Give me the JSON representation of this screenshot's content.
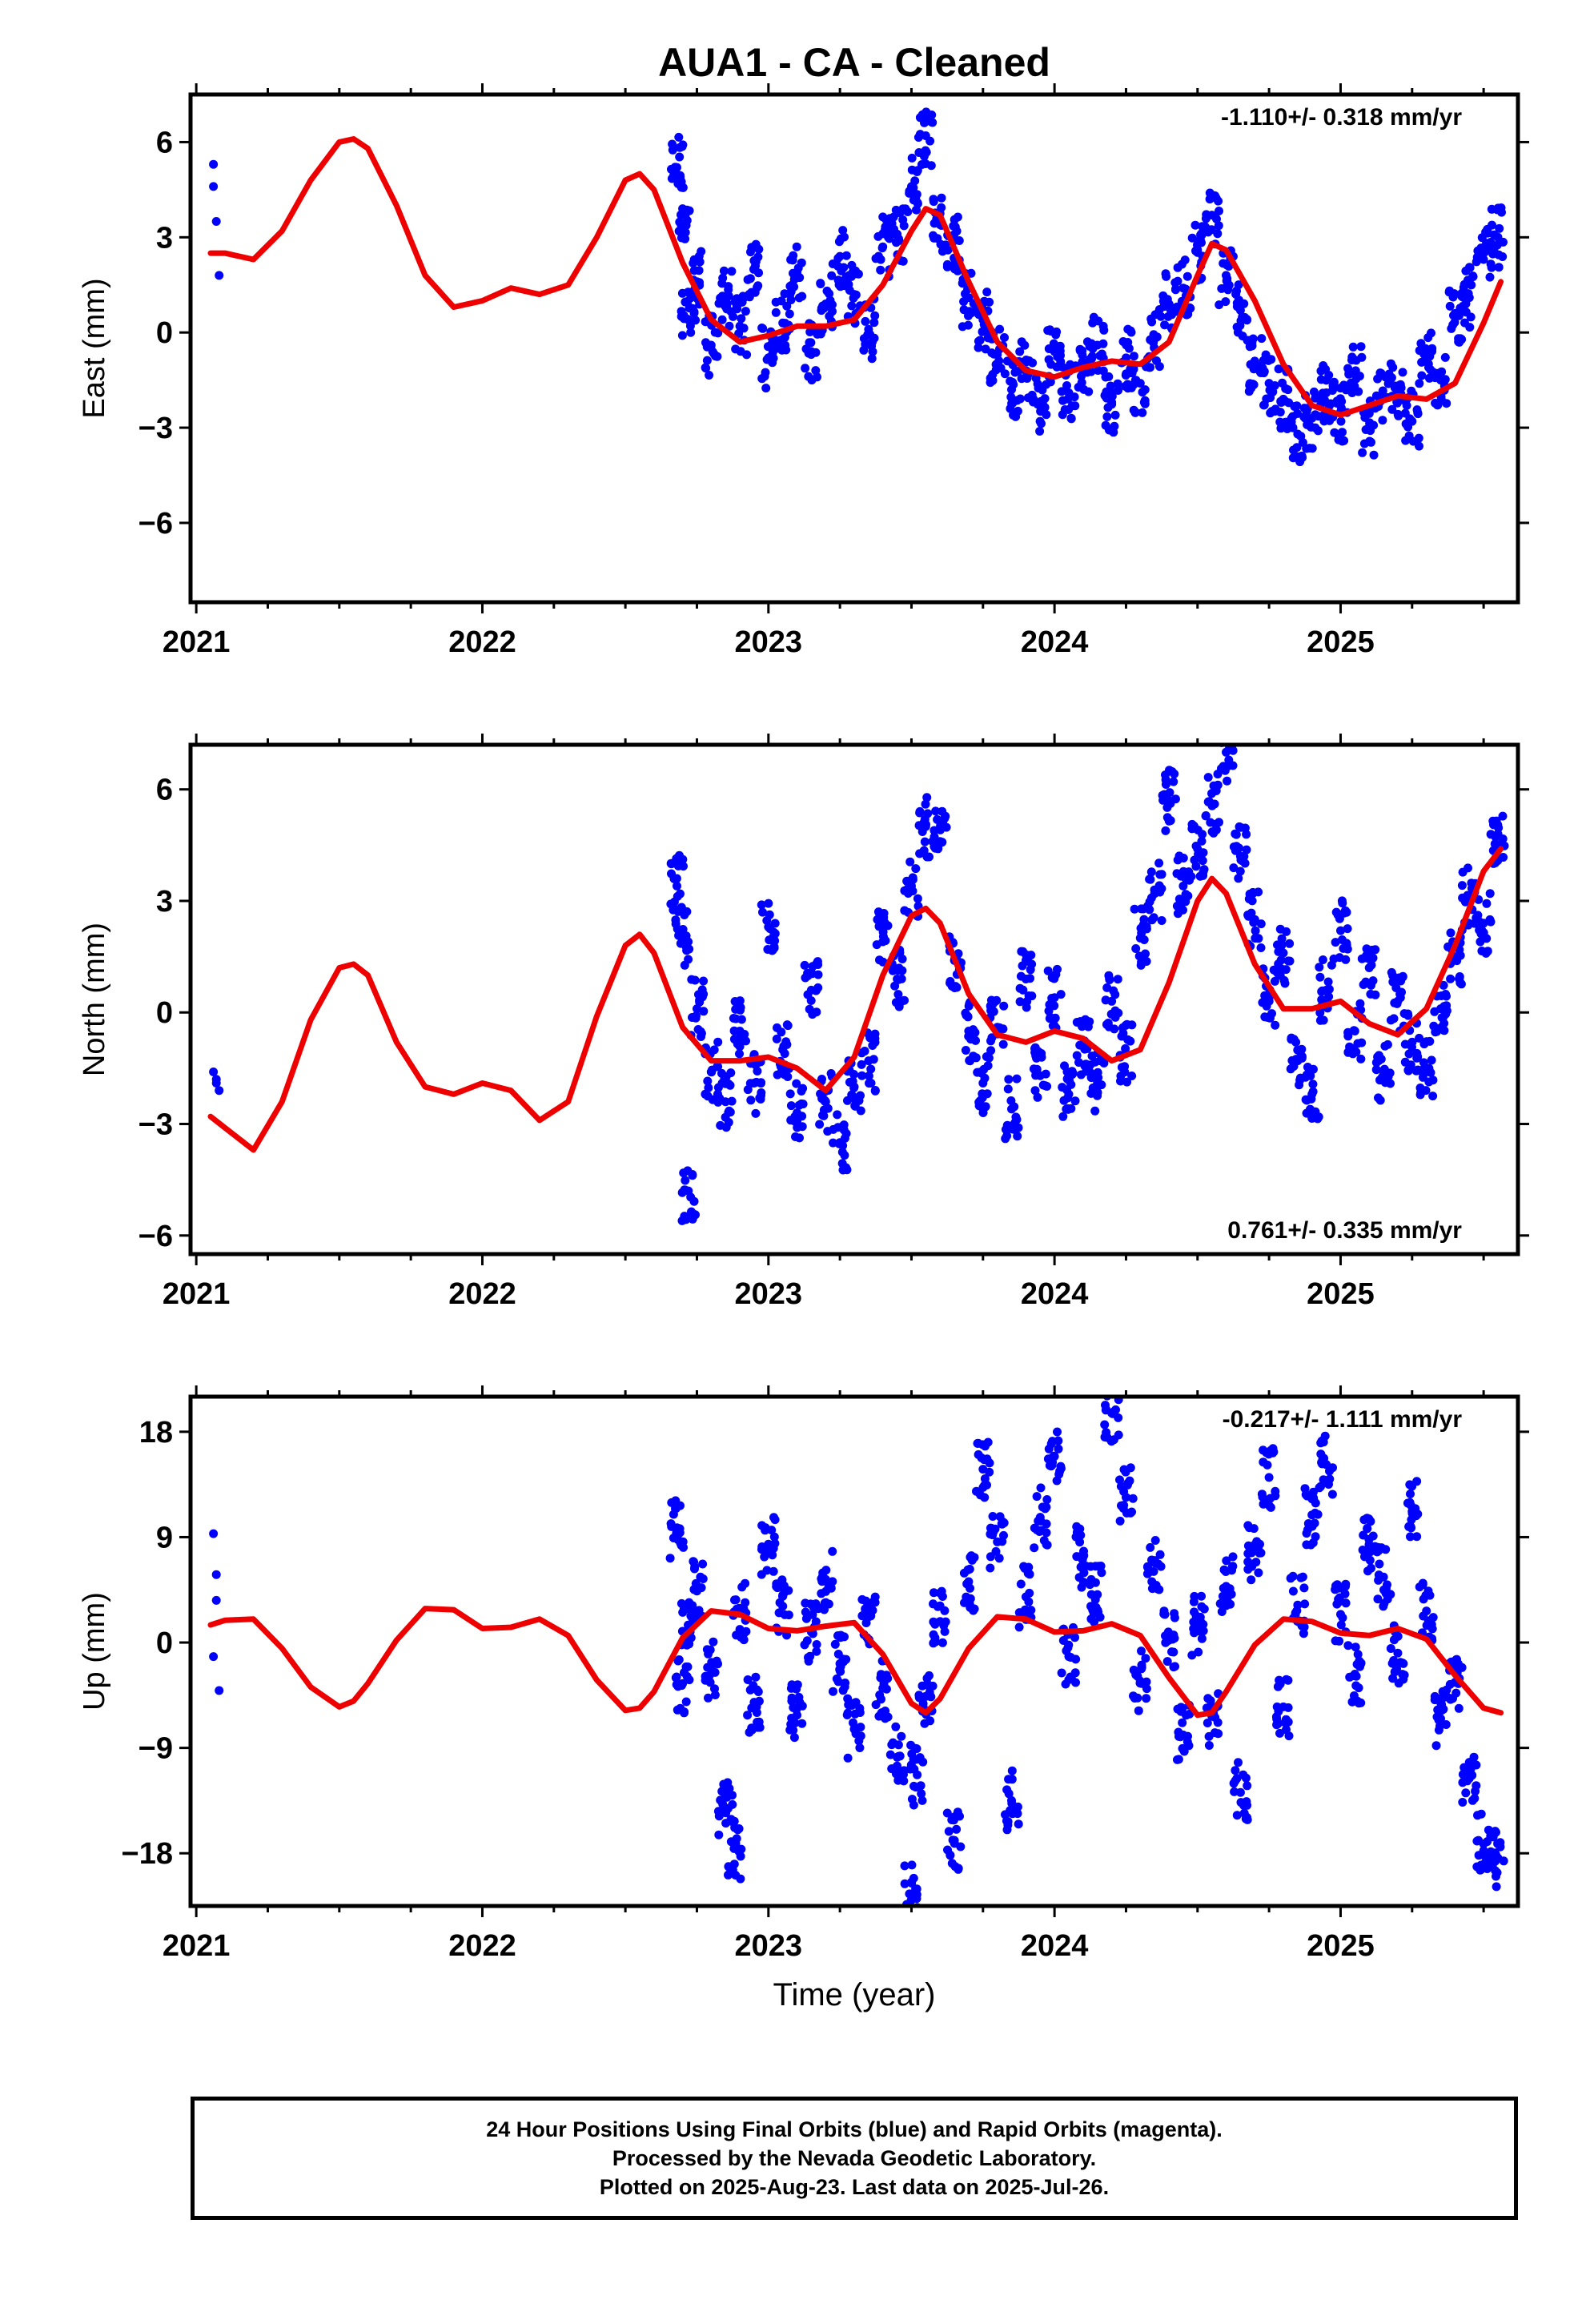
{
  "title": "AUA1  - CA - Cleaned",
  "footer": {
    "line1": "24 Hour Positions Using Final Orbits (blue) and Rapid Orbits (magenta).",
    "line2": "Processed by the Nevada Geodetic Laboratory.",
    "line3": "Plotted on 2025-Aug-23. Last data on 2025-Jul-26."
  },
  "colors": {
    "points": "#0000ff",
    "fit": "#ee0000",
    "frame": "#000000"
  },
  "chart_data": [
    {
      "type": "scatter",
      "ylabel": "East (mm)",
      "xlabel": "",
      "rate_label": "-1.110+/- 0.318 mm/yr",
      "rate_position": "top-right",
      "xlim": [
        2020.98,
        2025.62
      ],
      "ylim": [
        -8.5,
        7.5
      ],
      "xticks": [
        "2021",
        "2022",
        "2023",
        "2024",
        "2025"
      ],
      "yticks": [
        "6",
        "3",
        "0",
        "-3",
        "-6"
      ],
      "ytick_values": [
        6,
        3,
        0,
        -3,
        -6
      ],
      "series": [
        {
          "kind": "points",
          "x": [
            2021.06,
            2021.06,
            2021.07,
            2021.08
          ],
          "y": [
            5.3,
            4.6,
            3.5,
            1.8
          ]
        },
        {
          "kind": "points",
          "x": [
            2022.68,
            2022.7,
            2022.72,
            2022.75,
            2022.8,
            2022.85,
            2022.9,
            2022.95,
            2023.0,
            2023.05,
            2023.1,
            2023.15,
            2023.2,
            2023.25,
            2023.3,
            2023.35,
            2023.4,
            2023.45,
            2023.5,
            2023.55,
            2023.6,
            2023.65,
            2023.7,
            2023.75,
            2023.8,
            2023.85,
            2023.9,
            2023.95,
            2024.0,
            2024.05,
            2024.1,
            2024.15,
            2024.2,
            2024.25,
            2024.3,
            2024.35,
            2024.4,
            2024.45,
            2024.5,
            2024.55,
            2024.6,
            2024.65,
            2024.7,
            2024.75,
            2024.8,
            2024.85,
            2024.9,
            2024.95,
            2025.0,
            2025.05,
            2025.1,
            2025.15,
            2025.2,
            2025.25,
            2025.3,
            2025.35,
            2025.4,
            2025.45,
            2025.5,
            2025.55
          ],
          "y": [
            5.2,
            3.9,
            0.4,
            1.6,
            -0.4,
            1.1,
            0.2,
            2.0,
            -0.8,
            0.3,
            1.9,
            -0.6,
            0.9,
            2.4,
            1.2,
            0.1,
            2.7,
            3.1,
            4.6,
            6.2,
            3.4,
            2.9,
            1.1,
            0.4,
            -0.7,
            -1.8,
            -1.2,
            -2.3,
            -0.6,
            -1.9,
            -1.0,
            -0.4,
            -2.2,
            -0.8,
            -1.6,
            -0.2,
            0.9,
            1.4,
            2.6,
            3.7,
            1.8,
            0.7,
            -0.9,
            -1.6,
            -2.1,
            -3.2,
            -2.7,
            -1.9,
            -2.5,
            -1.3,
            -3.0,
            -2.0,
            -1.7,
            -2.8,
            -0.9,
            -1.5,
            0.6,
            1.1,
            2.3,
            3.0
          ]
        }
      ],
      "fit": {
        "x": [
          2021.05,
          2021.1,
          2021.2,
          2021.3,
          2021.4,
          2021.5,
          2021.55,
          2021.6,
          2021.7,
          2021.8,
          2021.9,
          2022.0,
          2022.1,
          2022.2,
          2022.3,
          2022.4,
          2022.5,
          2022.55,
          2022.6,
          2022.7,
          2022.8,
          2022.9,
          2023.0,
          2023.1,
          2023.2,
          2023.3,
          2023.4,
          2023.5,
          2023.55,
          2023.6,
          2023.7,
          2023.8,
          2023.9,
          2024.0,
          2024.1,
          2024.2,
          2024.3,
          2024.4,
          2024.5,
          2024.55,
          2024.6,
          2024.7,
          2024.8,
          2024.9,
          2025.0,
          2025.1,
          2025.2,
          2025.3,
          2025.4,
          2025.5,
          2025.56
        ],
        "y": [
          2.5,
          2.5,
          2.3,
          3.2,
          4.8,
          6.0,
          6.1,
          5.8,
          4.0,
          1.8,
          0.8,
          1.0,
          1.4,
          1.2,
          1.5,
          3.0,
          4.8,
          5.0,
          4.5,
          2.2,
          0.4,
          -0.3,
          -0.1,
          0.2,
          0.2,
          0.4,
          1.5,
          3.2,
          3.9,
          3.7,
          1.6,
          -0.3,
          -1.2,
          -1.4,
          -1.1,
          -0.9,
          -1.0,
          -0.3,
          1.8,
          2.8,
          2.6,
          1.0,
          -1.0,
          -2.3,
          -2.6,
          -2.3,
          -2.0,
          -2.1,
          -1.6,
          0.3,
          1.6
        ]
      }
    },
    {
      "type": "scatter",
      "ylabel": "North (mm)",
      "xlabel": "",
      "rate_label": "0.761+/- 0.335 mm/yr",
      "rate_position": "bottom-right",
      "xlim": [
        2020.98,
        2025.62
      ],
      "ylim": [
        -6.5,
        7.2
      ],
      "xticks": [
        "2021",
        "2022",
        "2023",
        "2024",
        "2025"
      ],
      "yticks": [
        "6",
        "3",
        "0",
        "-3",
        "-6"
      ],
      "ytick_values": [
        6,
        3,
        0,
        -3,
        -6
      ],
      "series": [
        {
          "kind": "points",
          "x": [
            2021.06,
            2021.07,
            2021.08,
            2021.07
          ],
          "y": [
            -1.6,
            -1.9,
            -2.1,
            -1.8
          ]
        },
        {
          "kind": "points",
          "x": [
            2022.68,
            2022.7,
            2022.72,
            2022.75,
            2022.8,
            2022.85,
            2022.9,
            2022.95,
            2023.0,
            2023.05,
            2023.1,
            2023.15,
            2023.2,
            2023.25,
            2023.3,
            2023.35,
            2023.4,
            2023.45,
            2023.5,
            2023.55,
            2023.6,
            2023.65,
            2023.7,
            2023.75,
            2023.8,
            2023.85,
            2023.9,
            2023.95,
            2024.0,
            2024.05,
            2024.1,
            2024.15,
            2024.2,
            2024.25,
            2024.3,
            2024.35,
            2024.4,
            2024.45,
            2024.5,
            2024.55,
            2024.6,
            2024.65,
            2024.7,
            2024.75,
            2024.8,
            2024.85,
            2024.9,
            2024.95,
            2025.0,
            2025.05,
            2025.1,
            2025.15,
            2025.2,
            2025.25,
            2025.3,
            2025.35,
            2025.4,
            2025.45,
            2025.5,
            2025.55
          ],
          "y": [
            3.4,
            2.0,
            -4.8,
            0.1,
            -1.6,
            -2.4,
            -0.5,
            -1.9,
            2.3,
            -1.0,
            -2.7,
            0.6,
            -2.4,
            -3.5,
            -2.0,
            -1.3,
            1.9,
            0.9,
            3.4,
            5.0,
            4.6,
            1.4,
            -0.5,
            -1.9,
            -0.4,
            -2.6,
            0.9,
            -1.7,
            0.4,
            -2.2,
            -0.9,
            -1.9,
            0.3,
            -1.1,
            2.0,
            3.2,
            5.7,
            3.4,
            4.4,
            5.6,
            7.0,
            4.2,
            2.5,
            0.4,
            1.6,
            -1.3,
            -2.2,
            0.6,
            2.2,
            -0.5,
            1.2,
            -1.6,
            0.3,
            -0.8,
            -1.6,
            0.1,
            1.5,
            3.1,
            2.4,
            4.8
          ]
        }
      ],
      "fit": {
        "x": [
          2021.05,
          2021.1,
          2021.2,
          2021.3,
          2021.4,
          2021.5,
          2021.55,
          2021.6,
          2021.7,
          2021.8,
          2021.9,
          2022.0,
          2022.1,
          2022.2,
          2022.3,
          2022.4,
          2022.5,
          2022.55,
          2022.6,
          2022.7,
          2022.8,
          2022.9,
          2023.0,
          2023.1,
          2023.2,
          2023.3,
          2023.4,
          2023.5,
          2023.55,
          2023.6,
          2023.7,
          2023.8,
          2023.9,
          2024.0,
          2024.1,
          2024.2,
          2024.3,
          2024.4,
          2024.5,
          2024.55,
          2024.6,
          2024.7,
          2024.8,
          2024.9,
          2025.0,
          2025.1,
          2025.2,
          2025.3,
          2025.4,
          2025.5,
          2025.56
        ],
        "y": [
          -2.8,
          -3.1,
          -3.7,
          -2.4,
          -0.2,
          1.2,
          1.3,
          1.0,
          -0.8,
          -2.0,
          -2.2,
          -1.9,
          -2.1,
          -2.9,
          -2.4,
          -0.1,
          1.8,
          2.1,
          1.6,
          -0.4,
          -1.3,
          -1.3,
          -1.2,
          -1.5,
          -2.1,
          -1.2,
          1.0,
          2.6,
          2.8,
          2.4,
          0.5,
          -0.6,
          -0.8,
          -0.5,
          -0.7,
          -1.3,
          -1.0,
          0.8,
          3.0,
          3.6,
          3.2,
          1.3,
          0.1,
          0.1,
          0.3,
          -0.3,
          -0.6,
          0.1,
          1.8,
          3.8,
          4.4
        ]
      }
    },
    {
      "type": "scatter",
      "ylabel": "Up (mm)",
      "xlabel": "Time (year)",
      "rate_label": "-0.217+/- 1.111 mm/yr",
      "rate_position": "top-right",
      "xlim": [
        2020.98,
        2025.62
      ],
      "ylim": [
        -22.5,
        21
      ],
      "xticks": [
        "2021",
        "2022",
        "2023",
        "2024",
        "2025"
      ],
      "yticks": [
        "18",
        "9",
        "0",
        "-9",
        "-18"
      ],
      "ytick_values": [
        18,
        9,
        0,
        -9,
        -18
      ],
      "series": [
        {
          "kind": "points",
          "x": [
            2021.06,
            2021.07,
            2021.07,
            2021.08,
            2021.06
          ],
          "y": [
            9.3,
            5.8,
            3.6,
            -4.1,
            -1.2
          ]
        },
        {
          "kind": "points",
          "x": [
            2022.68,
            2022.7,
            2022.72,
            2022.75,
            2022.8,
            2022.85,
            2022.88,
            2022.9,
            2022.95,
            2023.0,
            2023.05,
            2023.1,
            2023.15,
            2023.2,
            2023.25,
            2023.3,
            2023.35,
            2023.4,
            2023.45,
            2023.5,
            2023.52,
            2023.55,
            2023.6,
            2023.65,
            2023.7,
            2023.75,
            2023.8,
            2023.85,
            2023.9,
            2023.95,
            2024.0,
            2024.05,
            2024.1,
            2024.15,
            2024.2,
            2024.25,
            2024.3,
            2024.35,
            2024.4,
            2024.45,
            2024.5,
            2024.55,
            2024.6,
            2024.65,
            2024.7,
            2024.75,
            2024.8,
            2024.85,
            2024.9,
            2024.95,
            2025.0,
            2025.05,
            2025.1,
            2025.15,
            2025.2,
            2025.25,
            2025.3,
            2025.35,
            2025.4,
            2025.45,
            2025.5,
            2025.55
          ],
          "y": [
            9.8,
            -3.5,
            1.2,
            4.4,
            -2.3,
            -14.2,
            -17.6,
            2.5,
            -5.1,
            8.4,
            3.1,
            -6.2,
            0.9,
            5.4,
            -1.8,
            -7.4,
            2.2,
            -3.9,
            -9.8,
            -21.6,
            -11.3,
            -4.6,
            1.8,
            -16.9,
            5.2,
            14.8,
            8.6,
            -13.5,
            3.9,
            10.7,
            15.9,
            -1.2,
            7.3,
            4.1,
            19.6,
            12.4,
            -3.3,
            6.8,
            0.2,
            -7.9,
            1.5,
            -6.3,
            4.8,
            -12.8,
            7.9,
            14.1,
            -5.5,
            3.2,
            10.9,
            15.2,
            2.4,
            -2.7,
            8.1,
            5.6,
            -0.9,
            11.2,
            2.7,
            -6.5,
            -3.4,
            -11.6,
            -17.2,
            -18.4
          ]
        }
      ],
      "fit": {
        "x": [
          2021.05,
          2021.1,
          2021.2,
          2021.3,
          2021.4,
          2021.5,
          2021.55,
          2021.6,
          2021.7,
          2021.8,
          2021.9,
          2022.0,
          2022.1,
          2022.2,
          2022.3,
          2022.4,
          2022.5,
          2022.55,
          2022.6,
          2022.7,
          2022.8,
          2022.9,
          2023.0,
          2023.1,
          2023.2,
          2023.3,
          2023.4,
          2023.5,
          2023.55,
          2023.6,
          2023.7,
          2023.8,
          2023.9,
          2024.0,
          2024.1,
          2024.2,
          2024.3,
          2024.4,
          2024.5,
          2024.55,
          2024.6,
          2024.7,
          2024.8,
          2024.9,
          2025.0,
          2025.1,
          2025.2,
          2025.3,
          2025.4,
          2025.5,
          2025.56
        ],
        "y": [
          1.5,
          1.9,
          2.0,
          -0.5,
          -3.8,
          -5.5,
          -5.0,
          -3.5,
          0.2,
          2.9,
          2.8,
          1.2,
          1.3,
          2.0,
          0.6,
          -3.2,
          -5.8,
          -5.6,
          -4.2,
          0.4,
          2.7,
          2.4,
          1.2,
          1.0,
          1.4,
          1.7,
          -1.0,
          -5.2,
          -6.0,
          -4.8,
          -0.5,
          2.2,
          2.0,
          0.9,
          1.0,
          1.6,
          0.6,
          -3.0,
          -6.2,
          -6.0,
          -4.2,
          -0.2,
          2.0,
          1.8,
          0.8,
          0.6,
          1.2,
          0.3,
          -2.8,
          -5.6,
          -6.0
        ]
      }
    }
  ]
}
